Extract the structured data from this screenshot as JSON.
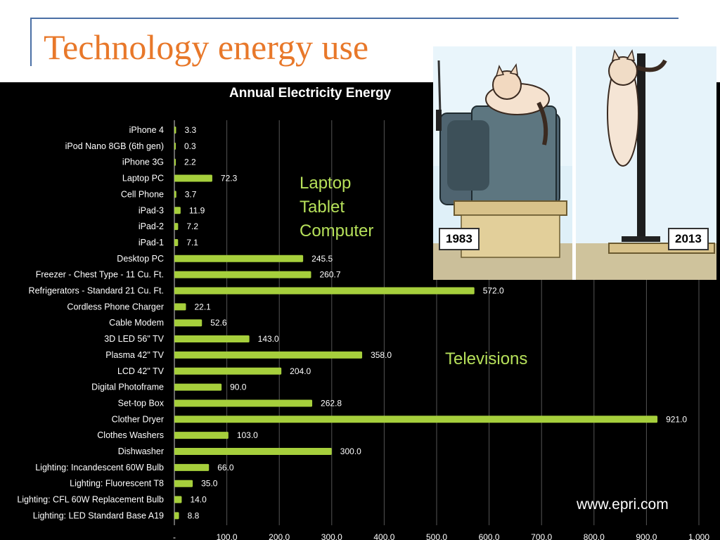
{
  "slide": {
    "title": "Technology energy use",
    "source": "www.epri.com"
  },
  "overlays": {
    "laptop_group": [
      "Laptop",
      "Tablet",
      "Computer"
    ],
    "tv_group": "Televisions"
  },
  "cartoon": {
    "year_left": "1983",
    "year_right": "2013"
  },
  "colors": {
    "bar": "#a6cf3c",
    "overlay_text": "#b6e05a",
    "title": "#e8782a",
    "background": "#000000"
  },
  "chart_data": {
    "type": "bar",
    "orientation": "horizontal",
    "title": "Annual Electricity Energy",
    "xlim": [
      0,
      1000
    ],
    "x_ticks": [
      "-",
      "100.0",
      "200.0",
      "300.0",
      "400.0",
      "500.0",
      "600.0",
      "700.0",
      "800.0",
      "900.0",
      "1,000"
    ],
    "grid": true,
    "categories": [
      "iPhone 4",
      "iPod Nano 8GB (6th gen)",
      "iPhone 3G",
      "Laptop PC",
      "Cell Phone",
      "iPad-3",
      "iPad-2",
      "iPad-1",
      "Desktop PC",
      "Freezer - Chest Type - 11 Cu. Ft.",
      "Refrigerators - Standard 21 Cu. Ft.",
      "Cordless Phone Charger",
      "Cable Modem",
      "3D LED 56\" TV",
      "Plasma 42\" TV",
      "LCD 42\" TV",
      "Digital Photoframe",
      "Set-top Box",
      "Clother Dryer",
      "Clothes Washers",
      "Dishwasher",
      "Lighting: Incandescent 60W Bulb",
      "Lighting: Fluorescent T8",
      "Lighting: CFL 60W Replacement Bulb",
      "Lighting: LED Standard Base A19"
    ],
    "values": [
      3.3,
      0.3,
      2.2,
      72.3,
      3.7,
      11.9,
      7.2,
      7.1,
      245.5,
      260.7,
      572.0,
      22.1,
      52.6,
      143.0,
      358.0,
      204.0,
      90.0,
      262.8,
      921.0,
      103.0,
      300.0,
      66.0,
      35.0,
      14.0,
      8.8
    ],
    "value_labels": [
      "3.3",
      "0.3",
      "2.2",
      "72.3",
      "3.7",
      "11.9",
      "7.2",
      "7.1",
      "245.5",
      "260.7",
      "572.0",
      "22.1",
      "52.6",
      "143.0",
      "358.0",
      "204.0",
      "90.0",
      "262.8",
      "921.0",
      "103.0",
      "300.0",
      "66.0",
      "35.0",
      "14.0",
      "8.8"
    ]
  }
}
